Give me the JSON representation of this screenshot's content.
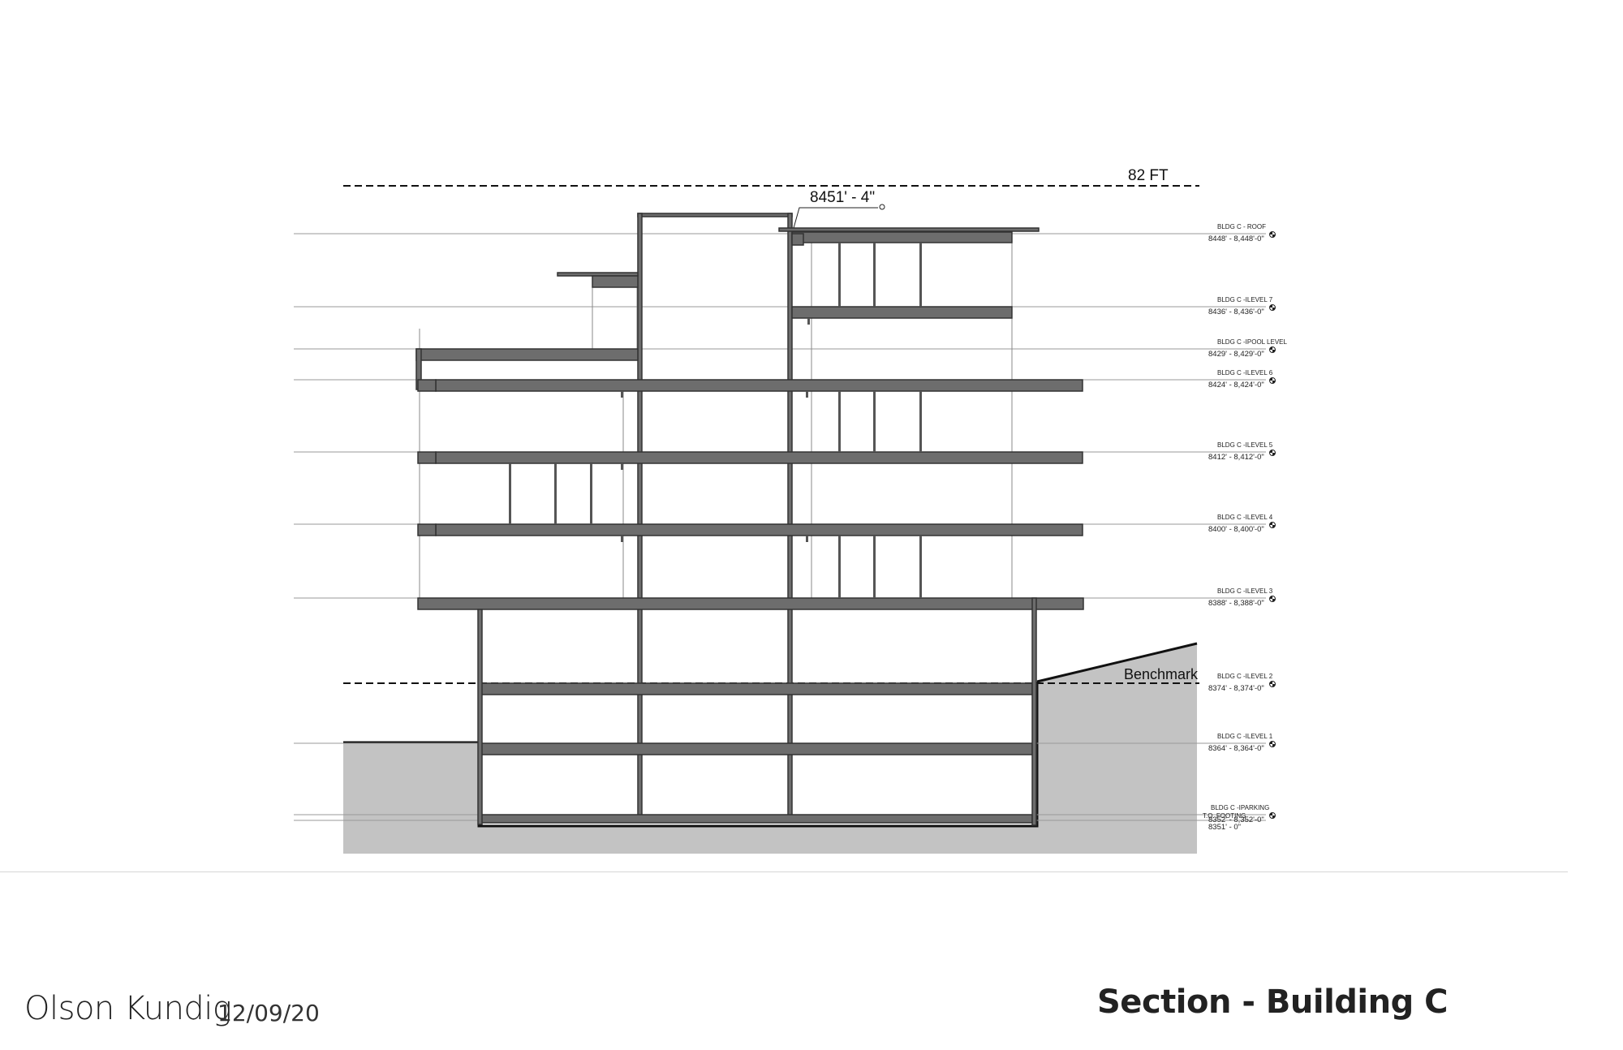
{
  "drawing": {
    "height_limit_label": "82 FT",
    "peak_elevation_label": "8451' - 4\"",
    "benchmark_label": "Benchmark",
    "levels": [
      {
        "name": "BLDG C - ROOF",
        "elevation": "8448' - 8,448'-0\""
      },
      {
        "name": "BLDG C -ILEVEL 7",
        "elevation": "8436' - 8,436'-0\""
      },
      {
        "name": "BLDG C -IPOOL LEVEL",
        "elevation": "8429' - 8,429'-0\""
      },
      {
        "name": "BLDG C -ILEVEL 6",
        "elevation": "8424' - 8,424'-0\""
      },
      {
        "name": "BLDG C -ILEVEL 5",
        "elevation": "8412' - 8,412'-0\""
      },
      {
        "name": "BLDG C -ILEVEL 4",
        "elevation": "8400' - 8,400'-0\""
      },
      {
        "name": "BLDG C -ILEVEL 3",
        "elevation": "8388' - 8,388'-0\""
      },
      {
        "name": "BLDG C -ILEVEL 2",
        "elevation": "8374' - 8,374'-0\""
      },
      {
        "name": "BLDG C -ILEVEL 1",
        "elevation": "8364' - 8,364'-0\""
      },
      {
        "name": "BLDG C -IPARKING",
        "elevation": "8352' - 8,352'-0\""
      },
      {
        "name": "T.O. FOOTING",
        "elevation": "8351' - 0\""
      }
    ]
  },
  "footer": {
    "firm": "Olson Kundig",
    "date": "12/09/20",
    "title": "Section - Building C"
  }
}
